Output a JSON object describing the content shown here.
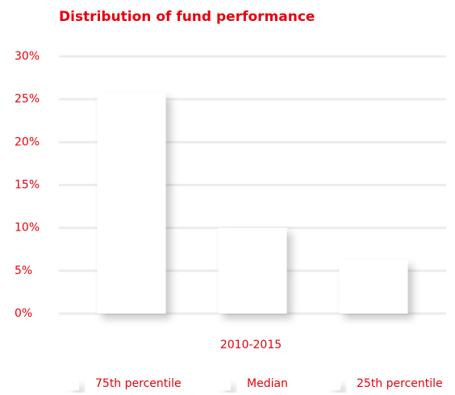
{
  "chart_data": {
    "type": "bar",
    "title": "Distribution of fund performance",
    "categories": [
      "2010-2015"
    ],
    "series": [
      {
        "name": "75th percentile",
        "color": "#ffffff",
        "values": [
          25.7
        ]
      },
      {
        "name": "Median",
        "color": "#ffffff",
        "values": [
          10
        ]
      },
      {
        "name": "25th percentile",
        "color": "#ffffff",
        "values": [
          6.2
        ]
      }
    ],
    "ylim": [
      0,
      30
    ],
    "yticks": [
      {
        "value": 0,
        "label": "0%"
      },
      {
        "value": 5,
        "label": "5%"
      },
      {
        "value": 10,
        "label": "10%"
      },
      {
        "value": 15,
        "label": "15%"
      },
      {
        "value": 20,
        "label": "20%"
      },
      {
        "value": 25,
        "label": "25%"
      },
      {
        "value": 30,
        "label": "30%"
      }
    ],
    "grid": true,
    "legend": "bottom"
  }
}
